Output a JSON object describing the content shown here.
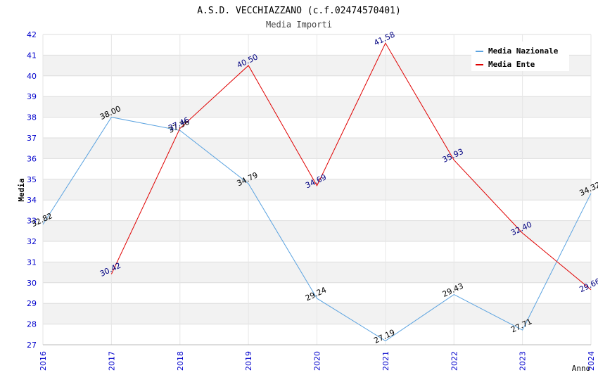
{
  "chart_data": {
    "type": "line",
    "title": "A.S.D. VECCHIAZZANO (c.f.02474570401)",
    "subtitle": "Media Importi",
    "xlabel": "Anno",
    "ylabel": "Media",
    "x": [
      "2016",
      "2017",
      "2018",
      "2019",
      "2020",
      "2021",
      "2022",
      "2023",
      "2024"
    ],
    "ylim": [
      27,
      42
    ],
    "yticks": [
      "27",
      "28",
      "29",
      "30",
      "31",
      "32",
      "33",
      "34",
      "35",
      "36",
      "37",
      "38",
      "39",
      "40",
      "41",
      "42"
    ],
    "grid": true,
    "legend_position": "top-right",
    "series": [
      {
        "name": "Media Nazionale",
        "color": "#5ba3e0",
        "label_color": "#000000",
        "values": [
          32.82,
          38.0,
          37.36,
          34.79,
          29.24,
          27.19,
          29.43,
          27.71,
          34.32
        ],
        "labels": [
          "32.82",
          "38.00",
          "37.36",
          "34.79",
          "29.24",
          "27.19",
          "29.43",
          "27.71",
          "34.32"
        ]
      },
      {
        "name": "Media Ente",
        "color": "#e00000",
        "label_color": "#000080",
        "values": [
          null,
          30.42,
          37.46,
          40.5,
          34.69,
          41.58,
          35.93,
          32.4,
          29.66
        ],
        "labels": [
          "",
          "30.42",
          "37.46",
          "40.50",
          "34.69",
          "41.58",
          "35.93",
          "32.40",
          "29.66"
        ]
      }
    ]
  }
}
